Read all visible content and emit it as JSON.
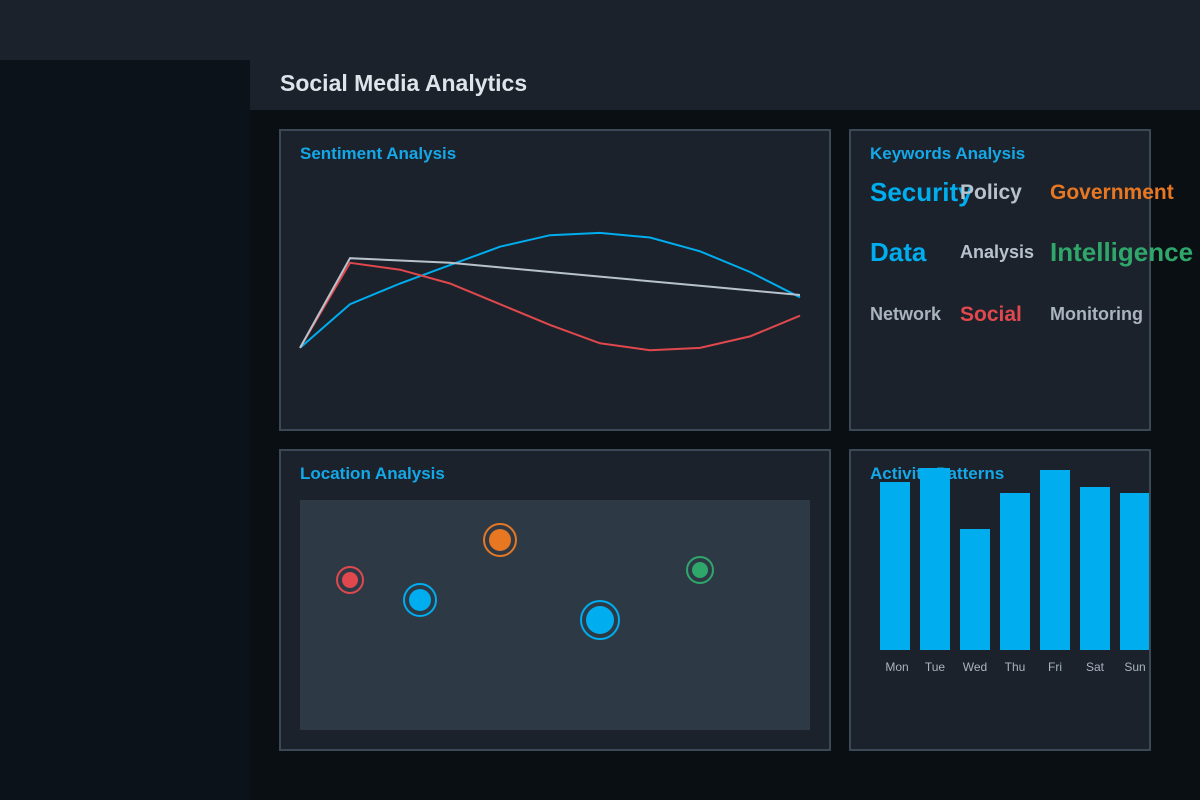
{
  "app": {
    "title": "Social Media Analytics"
  },
  "panels": {
    "sentiment": {
      "title": "Sentiment Analysis"
    },
    "keywords": {
      "title": "Keywords Analysis"
    },
    "location": {
      "title": "Location Analysis"
    },
    "activity": {
      "title": "Activity Patterns"
    }
  },
  "colors": {
    "accent": "#00adef",
    "negative": "#e0484d",
    "neutral": "#b8c2cc",
    "orange": "#e87722",
    "green": "#2fa66a",
    "grey": "#a9b4bf"
  },
  "keywords": [
    {
      "text": "Security",
      "color": "#00adef",
      "weight": "large"
    },
    {
      "text": "Policy",
      "color": "#b8c2cc",
      "weight": "medium"
    },
    {
      "text": "Government",
      "color": "#e87722",
      "weight": "medium"
    },
    {
      "text": "Data",
      "color": "#00adef",
      "weight": "large"
    },
    {
      "text": "Analysis",
      "color": "#b8c2cc",
      "weight": "small"
    },
    {
      "text": "Intelligence",
      "color": "#2fa66a",
      "weight": "large"
    },
    {
      "text": "Network",
      "color": "#a9b4bf",
      "weight": "small"
    },
    {
      "text": "Social",
      "color": "#e0484d",
      "weight": "medium"
    },
    {
      "text": "Monitoring",
      "color": "#a9b4bf",
      "weight": "small"
    }
  ],
  "locations": [
    {
      "color": "#e0484d",
      "size": "small"
    },
    {
      "color": "#00adef",
      "size": "medium"
    },
    {
      "color": "#e87722",
      "size": "medium"
    },
    {
      "color": "#00adef",
      "size": "large"
    },
    {
      "color": "#2fa66a",
      "size": "small"
    }
  ],
  "chart_data": [
    {
      "type": "line",
      "x": [
        0,
        1,
        2,
        3,
        4,
        5,
        6,
        7,
        8,
        9,
        10
      ],
      "ylim": [
        0,
        1
      ],
      "grid": false,
      "series": [
        {
          "color": "#00adef",
          "values": [
            0.27,
            0.46,
            0.55,
            0.63,
            0.71,
            0.76,
            0.77,
            0.75,
            0.69,
            0.6,
            0.49
          ]
        },
        {
          "color": "#e0484d",
          "values": [
            0.27,
            0.64,
            0.61,
            0.55,
            0.46,
            0.37,
            0.29,
            0.26,
            0.27,
            0.32,
            0.41
          ]
        },
        {
          "color": "#b8c2cc",
          "values": [
            0.27,
            0.66,
            0.65,
            0.64,
            0.62,
            0.6,
            0.58,
            0.56,
            0.54,
            0.52,
            0.5
          ]
        }
      ]
    },
    {
      "type": "bar",
      "categories": [
        "Mon",
        "Tue",
        "Wed",
        "Thu",
        "Fri",
        "Sat",
        "Sun"
      ],
      "values": [
        168,
        182,
        121,
        157,
        180,
        163,
        157
      ],
      "ylim": [
        0,
        200
      ],
      "color": "#00adef",
      "grid": false
    }
  ]
}
